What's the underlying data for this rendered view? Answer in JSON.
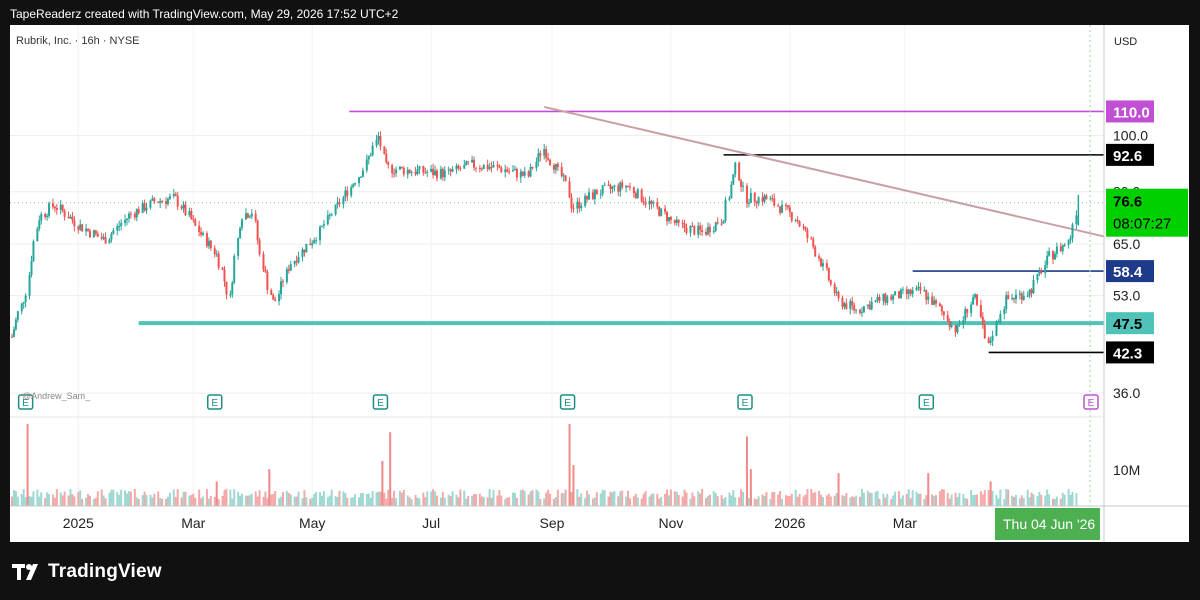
{
  "header": {
    "caption": "TapeReaderz created with TradingView.com, May 29, 2026 17:52 UTC+2"
  },
  "chart": {
    "legend": "Rubrik, Inc. · 16h · NYSE",
    "currency": "USD",
    "watermark": "@Andrew_Sam_",
    "countdown": "08:07:27",
    "crosshair_date": "Thu 04 Jun '26",
    "earnings_marker": "E"
  },
  "footer": {
    "brand": "TradingView"
  },
  "colors": {
    "up": "#26a69a",
    "down": "#ef5350",
    "purple_level": "#c04fd4",
    "teal_level": "#4fc3b7",
    "blue_level": "#1e3a8a",
    "trendline": "#c9a0a6",
    "last_price": "#00d000",
    "crosshair_label": "#4caf50"
  },
  "chart_data": {
    "type": "candlestick",
    "x_axis_labels": [
      "2025",
      "Mar",
      "May",
      "Jul",
      "Sep",
      "Nov",
      "2026",
      "Mar"
    ],
    "y_axis_labels": [
      100.0,
      80.0,
      65.0,
      53.0,
      36.0
    ],
    "y_scale": "log",
    "ylim": [
      33,
      155
    ],
    "volume_label": "10M",
    "last_price": 76.6,
    "levels": [
      {
        "price": 110.0,
        "label": "110.0",
        "color": "#c04fd4"
      },
      {
        "price": 92.6,
        "label": "92.6",
        "color": "#000000"
      },
      {
        "price": 58.4,
        "label": "58.4",
        "color": "#1e3a8a"
      },
      {
        "price": 47.5,
        "label": "47.5",
        "color": "#4fc3b7"
      },
      {
        "price": 42.3,
        "label": "42.3",
        "color": "#000000"
      }
    ],
    "trendline": {
      "from": {
        "date": "2025-08-28",
        "price": 112.0
      },
      "to": {
        "date": "2026-06-04",
        "price": 67.0
      }
    },
    "earnings_dates": [
      "2024-12-05",
      "2025-03-12",
      "2025-06-05",
      "2025-09-09",
      "2025-12-09",
      "2026-03-12",
      "2026-06-10"
    ],
    "price_path": [
      {
        "date": "2024-11-28",
        "price": 45.0
      },
      {
        "date": "2024-12-06",
        "price": 54.0
      },
      {
        "date": "2024-12-12",
        "price": 72.0
      },
      {
        "date": "2024-12-20",
        "price": 76.0
      },
      {
        "date": "2025-01-02",
        "price": 70.0
      },
      {
        "date": "2025-01-15",
        "price": 66.0
      },
      {
        "date": "2025-01-28",
        "price": 73.0
      },
      {
        "date": "2025-02-10",
        "price": 77.0
      },
      {
        "date": "2025-02-20",
        "price": 78.0
      },
      {
        "date": "2025-03-05",
        "price": 68.0
      },
      {
        "date": "2025-03-14",
        "price": 62.0
      },
      {
        "date": "2025-03-20",
        "price": 52.0
      },
      {
        "date": "2025-03-26",
        "price": 73.0
      },
      {
        "date": "2025-04-01",
        "price": 74.0
      },
      {
        "date": "2025-04-05",
        "price": 62.0
      },
      {
        "date": "2025-04-09",
        "price": 55.0
      },
      {
        "date": "2025-04-12",
        "price": 51.0
      },
      {
        "date": "2025-04-20",
        "price": 60.0
      },
      {
        "date": "2025-05-05",
        "price": 68.0
      },
      {
        "date": "2025-05-15",
        "price": 76.0
      },
      {
        "date": "2025-05-28",
        "price": 88.0
      },
      {
        "date": "2025-06-05",
        "price": 100.0
      },
      {
        "date": "2025-06-08",
        "price": 88.0
      },
      {
        "date": "2025-06-20",
        "price": 87.0
      },
      {
        "date": "2025-07-10",
        "price": 86.0
      },
      {
        "date": "2025-07-22",
        "price": 89.0
      },
      {
        "date": "2025-08-05",
        "price": 88.0
      },
      {
        "date": "2025-08-20",
        "price": 85.0
      },
      {
        "date": "2025-08-28",
        "price": 95.0
      },
      {
        "date": "2025-09-09",
        "price": 82.0
      },
      {
        "date": "2025-09-12",
        "price": 75.0
      },
      {
        "date": "2025-09-25",
        "price": 80.0
      },
      {
        "date": "2025-10-10",
        "price": 82.0
      },
      {
        "date": "2025-10-22",
        "price": 76.0
      },
      {
        "date": "2025-11-05",
        "price": 70.0
      },
      {
        "date": "2025-11-18",
        "price": 68.0
      },
      {
        "date": "2025-11-28",
        "price": 72.0
      },
      {
        "date": "2025-12-05",
        "price": 88.0
      },
      {
        "date": "2025-12-10",
        "price": 78.0
      },
      {
        "date": "2025-12-20",
        "price": 78.0
      },
      {
        "date": "2026-01-05",
        "price": 72.0
      },
      {
        "date": "2026-01-15",
        "price": 63.0
      },
      {
        "date": "2026-01-26",
        "price": 52.0
      },
      {
        "date": "2026-02-05",
        "price": 50.0
      },
      {
        "date": "2026-02-16",
        "price": 52.0
      },
      {
        "date": "2026-02-26",
        "price": 53.0
      },
      {
        "date": "2026-03-10",
        "price": 54.0
      },
      {
        "date": "2026-03-22",
        "price": 49.0
      },
      {
        "date": "2026-03-28",
        "price": 46.0
      },
      {
        "date": "2026-04-06",
        "price": 53.0
      },
      {
        "date": "2026-04-13",
        "price": 43.0
      },
      {
        "date": "2026-04-22",
        "price": 52.0
      },
      {
        "date": "2026-05-05",
        "price": 54.0
      },
      {
        "date": "2026-05-15",
        "price": 62.0
      },
      {
        "date": "2026-05-25",
        "price": 66.0
      },
      {
        "date": "2026-05-29",
        "price": 76.6
      }
    ],
    "volume_spikes": [
      {
        "date": "2024-12-06",
        "volume": 1.0
      },
      {
        "date": "2025-03-13",
        "volume": 0.3
      },
      {
        "date": "2025-04-09",
        "volume": 0.45
      },
      {
        "date": "2025-06-06",
        "volume": 0.55
      },
      {
        "date": "2025-06-10",
        "volume": 0.9
      },
      {
        "date": "2025-09-10",
        "volume": 1.0
      },
      {
        "date": "2025-09-12",
        "volume": 0.5
      },
      {
        "date": "2025-12-10",
        "volume": 0.85
      },
      {
        "date": "2025-12-12",
        "volume": 0.45
      },
      {
        "date": "2026-01-26",
        "volume": 0.4
      },
      {
        "date": "2026-03-13",
        "volume": 0.4
      },
      {
        "date": "2026-04-14",
        "volume": 0.3
      }
    ]
  }
}
